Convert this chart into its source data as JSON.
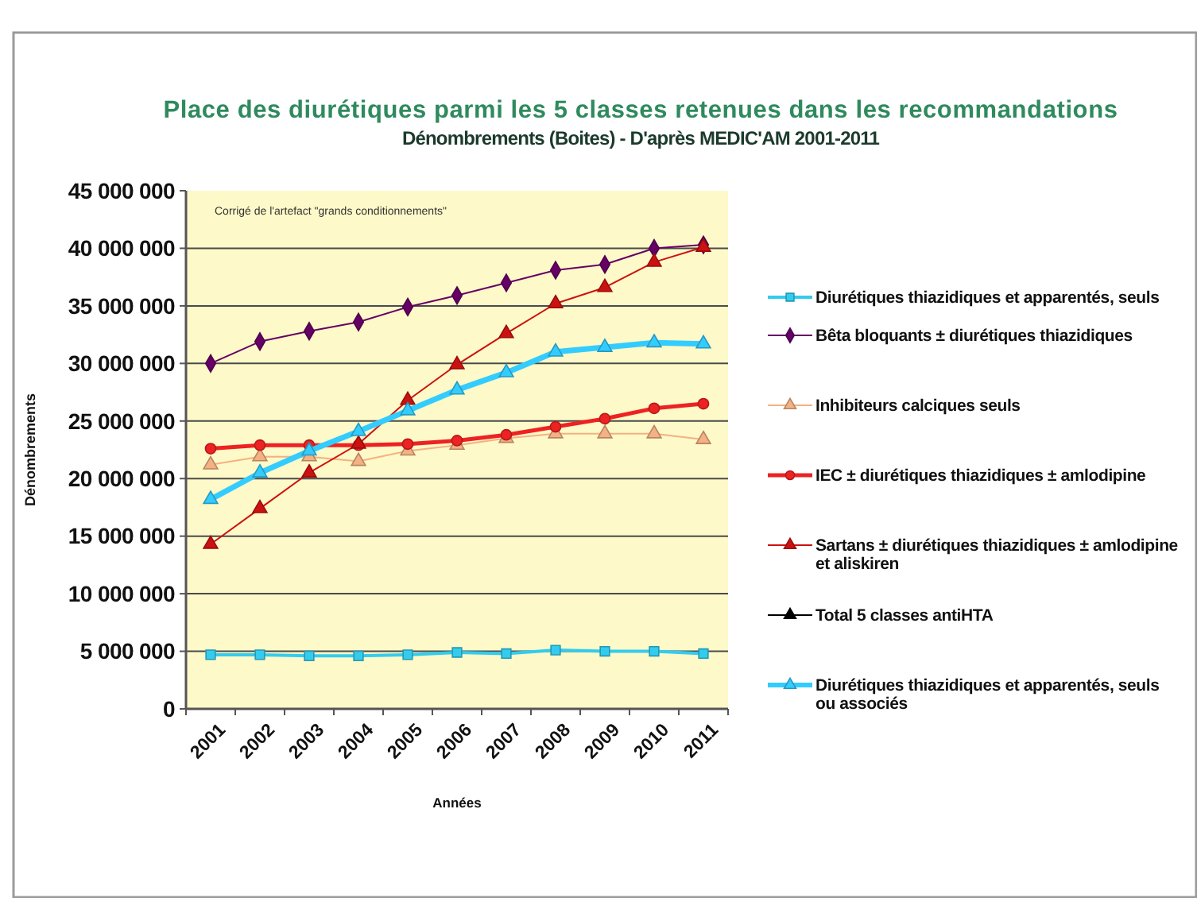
{
  "chart_data": {
    "type": "line",
    "title": "Place des diurétiques parmi les 5 classes retenues dans les recommandations",
    "subtitle": "Dénombrements (Boites) - D'après MEDIC'AM 2001-2011",
    "xlabel": "Années",
    "ylabel": "Dénombrements",
    "annotations": [
      "Corrigé de l'artefact \"grands conditionnements\""
    ],
    "categories": [
      "2001",
      "2002",
      "2003",
      "2004",
      "2005",
      "2006",
      "2007",
      "2008",
      "2009",
      "2010",
      "2011"
    ],
    "series": [
      {
        "name": "Diurétiques thiazidiques et apparentés, seuls",
        "color": "#33ccee",
        "marker": "square",
        "values": [
          4700000,
          4700000,
          4600000,
          4600000,
          4700000,
          4900000,
          4800000,
          5100000,
          5000000,
          5000000,
          4800000
        ]
      },
      {
        "name": "Bêta bloquants ± diurétiques thiazidiques",
        "color": "#660066",
        "marker": "diamond",
        "values": [
          30000000,
          31900000,
          32800000,
          33600000,
          34900000,
          35900000,
          37000000,
          38100000,
          38600000,
          40000000,
          40300000
        ]
      },
      {
        "name": "Inhibiteurs calciques seuls",
        "color": "#f4b183",
        "marker": "triangle",
        "values": [
          21200000,
          21900000,
          21900000,
          21500000,
          22400000,
          22900000,
          23500000,
          23900000,
          23900000,
          23900000,
          23400000
        ]
      },
      {
        "name": "IEC ± diurétiques thiazidiques ± amlodipine",
        "color": "#ee2222",
        "marker": "circle",
        "values": [
          22600000,
          22900000,
          22900000,
          22900000,
          23000000,
          23300000,
          23800000,
          24500000,
          25200000,
          26100000,
          26500000
        ]
      },
      {
        "name": "Sartans ± diurétiques thiazidiques ± amlodipine et aliskiren",
        "color": "#cc1111",
        "marker": "triangle",
        "values": [
          14300000,
          17400000,
          20500000,
          23000000,
          26800000,
          29900000,
          32600000,
          35200000,
          36600000,
          38800000,
          40100000
        ]
      },
      {
        "name": "Total 5 classes antiHTA",
        "color": "#000000",
        "marker": "triangle",
        "values": [
          null,
          null,
          null,
          null,
          null,
          null,
          null,
          null,
          null,
          null,
          null
        ]
      },
      {
        "name": "Diurétiques thiazidiques et apparentés, seuls ou associés",
        "color": "#33ccff",
        "marker": "triangle",
        "values": [
          18200000,
          20500000,
          22400000,
          24100000,
          25900000,
          27700000,
          29200000,
          31000000,
          31400000,
          31800000,
          31700000
        ]
      }
    ],
    "ylim": [
      0,
      45000000
    ],
    "yticks": [
      0,
      {
        "value": 5000000,
        "label": "5 000 000"
      },
      {
        "value": 10000000,
        "label": "10 000 000"
      },
      {
        "value": 15000000,
        "label": "15 000 000"
      },
      {
        "value": 20000000,
        "label": "20 000 000"
      },
      {
        "value": 25000000,
        "label": "25 000 000"
      },
      {
        "value": 30000000,
        "label": "30 000 000"
      },
      {
        "value": 35000000,
        "label": "35 000 000"
      },
      {
        "value": 40000000,
        "label": "40 000 000"
      },
      {
        "value": 45000000,
        "label": "45 000 000"
      }
    ],
    "grid": "y",
    "legend": "right"
  }
}
